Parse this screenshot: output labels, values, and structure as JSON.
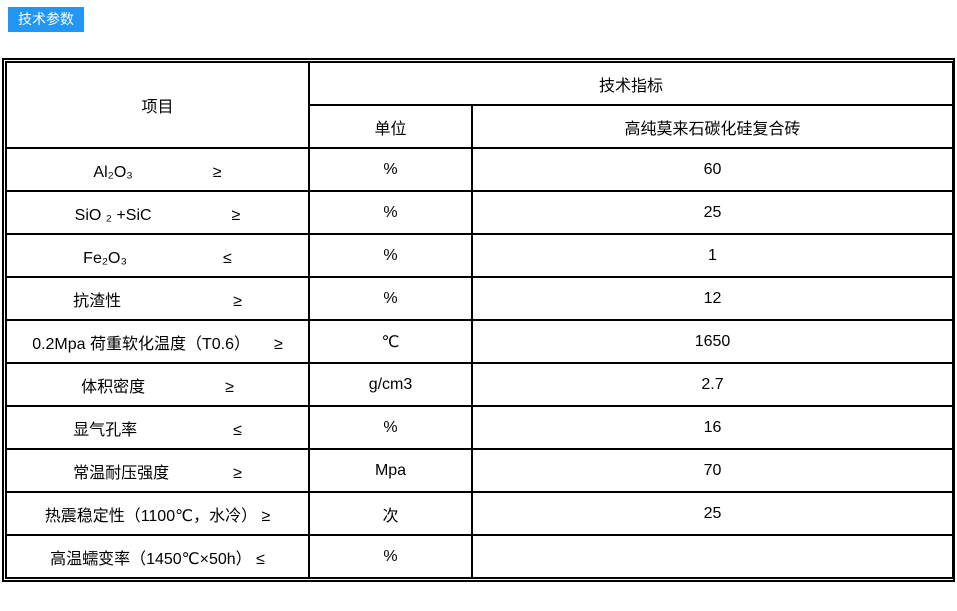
{
  "badge": {
    "label": "技术参数",
    "bg_color": "#2196F3",
    "text_color": "#ffffff"
  },
  "table": {
    "header": {
      "item": "项目",
      "tech_index": "技术指标",
      "unit": "单位",
      "product": "高纯莫来石碳化硅复合砖"
    },
    "rows": [
      {
        "item": "Al₂O₃　　　　　≥",
        "unit": "%",
        "value": "60"
      },
      {
        "item": "SiO ₂ +SiC　　　　　≥",
        "unit": "%",
        "value": "25"
      },
      {
        "item": "Fe₂O₃　　　　　　≤",
        "unit": "%",
        "value": "1"
      },
      {
        "item": "抗渣性　　　　　　　≥",
        "unit": "%",
        "value": "12"
      },
      {
        "item": "0.2Mpa 荷重软化温度（T0.6）　　≥",
        "unit": "℃",
        "value": "1650"
      },
      {
        "item": "体积密度　　　　　≥",
        "unit": "g/cm3",
        "value": "2.7"
      },
      {
        "item": "显气孔率　　　　　　≤",
        "unit": "%",
        "value": "16"
      },
      {
        "item": "常温耐压强度　　　　≥",
        "unit": "Mpa",
        "value": "70"
      },
      {
        "item": "热震稳定性（1100℃，水冷） ≥",
        "unit": "次",
        "value": "25"
      },
      {
        "item": "高温蠕变率（1450℃×50h） ≤",
        "unit": "%",
        "value": ""
      }
    ]
  }
}
